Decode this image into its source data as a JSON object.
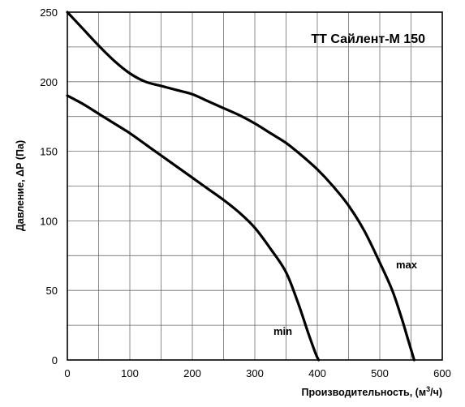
{
  "chart_data": {
    "type": "line",
    "title": "TT Сайлент-М 150",
    "xlabel": "Производительность, (м",
    "xlabel_sup": "3",
    "xlabel_end": "/ч)",
    "ylabel": "Давление, ΔР (Па)",
    "xlim": [
      0,
      600
    ],
    "ylim": [
      0,
      250
    ],
    "x_ticks": [
      0,
      100,
      200,
      300,
      400,
      500,
      600
    ],
    "y_ticks": [
      0,
      50,
      100,
      150,
      200,
      250
    ],
    "x_grid_step": 50,
    "y_grid_step": 25,
    "grid": true,
    "series": [
      {
        "name": "max",
        "points": [
          [
            0,
            250
          ],
          [
            25,
            238
          ],
          [
            50,
            226
          ],
          [
            75,
            215
          ],
          [
            100,
            206
          ],
          [
            125,
            200
          ],
          [
            150,
            197
          ],
          [
            175,
            194
          ],
          [
            200,
            191
          ],
          [
            225,
            186
          ],
          [
            250,
            181
          ],
          [
            275,
            176
          ],
          [
            300,
            170
          ],
          [
            325,
            163
          ],
          [
            350,
            156
          ],
          [
            375,
            147
          ],
          [
            400,
            137
          ],
          [
            425,
            125
          ],
          [
            450,
            111
          ],
          [
            475,
            93
          ],
          [
            500,
            70
          ],
          [
            520,
            50
          ],
          [
            535,
            30
          ],
          [
            545,
            15
          ],
          [
            555,
            0
          ]
        ]
      },
      {
        "name": "min",
        "points": [
          [
            0,
            190
          ],
          [
            25,
            184
          ],
          [
            50,
            177
          ],
          [
            75,
            170
          ],
          [
            100,
            163
          ],
          [
            125,
            155
          ],
          [
            150,
            147
          ],
          [
            175,
            139
          ],
          [
            200,
            131
          ],
          [
            225,
            123
          ],
          [
            250,
            115
          ],
          [
            275,
            106
          ],
          [
            300,
            95
          ],
          [
            325,
            80
          ],
          [
            350,
            63
          ],
          [
            370,
            40
          ],
          [
            385,
            20
          ],
          [
            397,
            5
          ],
          [
            402,
            0
          ]
        ]
      }
    ]
  }
}
